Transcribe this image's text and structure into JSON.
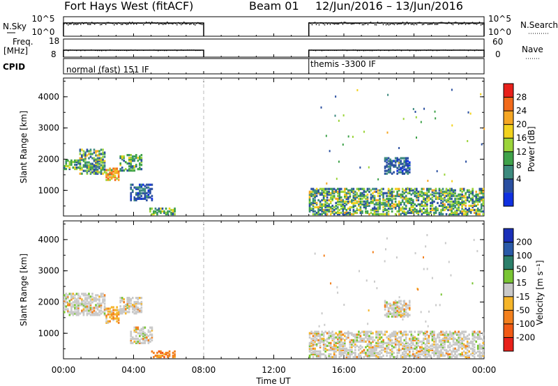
{
  "header": {
    "station": "Fort Hays West (fitACF)",
    "beam": "Beam 01",
    "date_range": "12/Jun/2016 – 13/Jun/2016"
  },
  "summary_labels": {
    "nsky": "N.Sky",
    "nsearch": "N.Search",
    "freq": "Freq.",
    "mhz": "[MHz]",
    "nave": "Nave",
    "cpid": "CPID",
    "nsky_ticks": [
      "10^5",
      "10^0"
    ],
    "nsearch_ticks": [
      "10^5",
      "10^0"
    ],
    "freq_ticks": [
      "18",
      "8"
    ],
    "nave_ticks": [
      "60",
      "0"
    ]
  },
  "cpid_segments": [
    {
      "start_hour": 0,
      "end_hour": 8,
      "label": "normal (fast) 151 IF"
    },
    {
      "start_hour": 14,
      "end_hour": 24,
      "label": "themis -3300 IF"
    }
  ],
  "chart_data": [
    {
      "type": "heatmap",
      "name_role": "power",
      "ylabel": "Slant Range [km]",
      "xlabel": "",
      "x_range_hours": [
        0,
        24
      ],
      "ylim": [
        180,
        4600
      ],
      "y_ticks": [
        1000,
        2000,
        3000,
        4000
      ],
      "colorbar_label": "Power [dB]",
      "colorbar_ticks": [
        "28",
        "24",
        "20",
        "16",
        "12",
        "8",
        "4"
      ],
      "colorbar_colors": [
        "#e8201a",
        "#f26a1a",
        "#f5a623",
        "#f2d21d",
        "#9bd43a",
        "#3fa24a",
        "#3d8a7e",
        "#2a4fa0",
        "#1030e0"
      ],
      "regions": [
        {
          "t0": 0.0,
          "t1": 0.9,
          "r0": 1650,
          "r1": 1950,
          "level": "green"
        },
        {
          "t0": 0.9,
          "t1": 2.4,
          "r0": 1500,
          "r1": 2300,
          "level": "mixed"
        },
        {
          "t0": 2.4,
          "t1": 3.2,
          "r0": 1300,
          "r1": 1700,
          "level": "orange"
        },
        {
          "t0": 3.2,
          "t1": 4.4,
          "r0": 1600,
          "r1": 2100,
          "level": "green"
        },
        {
          "t0": 3.8,
          "t1": 5.0,
          "r0": 650,
          "r1": 1150,
          "level": "blue"
        },
        {
          "t0": 4.9,
          "t1": 6.3,
          "r0": 200,
          "r1": 420,
          "level": "green"
        },
        {
          "t0": 14.0,
          "t1": 24.0,
          "r0": 200,
          "r1": 1050,
          "level": "mixed"
        },
        {
          "t0": 18.3,
          "t1": 19.8,
          "r0": 1500,
          "r1": 2000,
          "level": "blue"
        }
      ]
    },
    {
      "type": "heatmap",
      "name_role": "velocity",
      "ylabel": "Slant Range [km]",
      "xlabel": "Time UT",
      "x_range_hours": [
        0,
        24
      ],
      "x_ticks": [
        "00:00",
        "04:00",
        "08:00",
        "12:00",
        "16:00",
        "20:00",
        "00:00"
      ],
      "ylim": [
        180,
        4600
      ],
      "y_ticks": [
        1000,
        2000,
        3000,
        4000
      ],
      "colorbar_label": "Velocity [m s⁻¹]",
      "colorbar_ticks": [
        "200",
        "100",
        "50",
        "15",
        "-15",
        "-50",
        "-100",
        "-200"
      ],
      "colorbar_colors": [
        "#1a2fb8",
        "#2a5aa8",
        "#2c7f6a",
        "#79c534",
        "#c9c9c9",
        "#f5b52a",
        "#f3801d",
        "#f15a15",
        "#e8201a"
      ],
      "regions": [
        {
          "t0": 0.0,
          "t1": 2.4,
          "r0": 1550,
          "r1": 2250,
          "level": "grey"
        },
        {
          "t0": 2.4,
          "t1": 3.2,
          "r0": 1300,
          "r1": 1800,
          "level": "yellow"
        },
        {
          "t0": 3.2,
          "t1": 4.4,
          "r0": 1600,
          "r1": 2100,
          "level": "grey"
        },
        {
          "t0": 3.8,
          "t1": 5.0,
          "r0": 650,
          "r1": 1150,
          "level": "grey"
        },
        {
          "t0": 5.0,
          "t1": 6.3,
          "r0": 200,
          "r1": 420,
          "level": "orange"
        },
        {
          "t0": 14.0,
          "t1": 24.0,
          "r0": 200,
          "r1": 1050,
          "level": "grey"
        },
        {
          "t0": 18.3,
          "t1": 19.8,
          "r0": 1500,
          "r1": 2000,
          "level": "grey"
        }
      ]
    }
  ]
}
